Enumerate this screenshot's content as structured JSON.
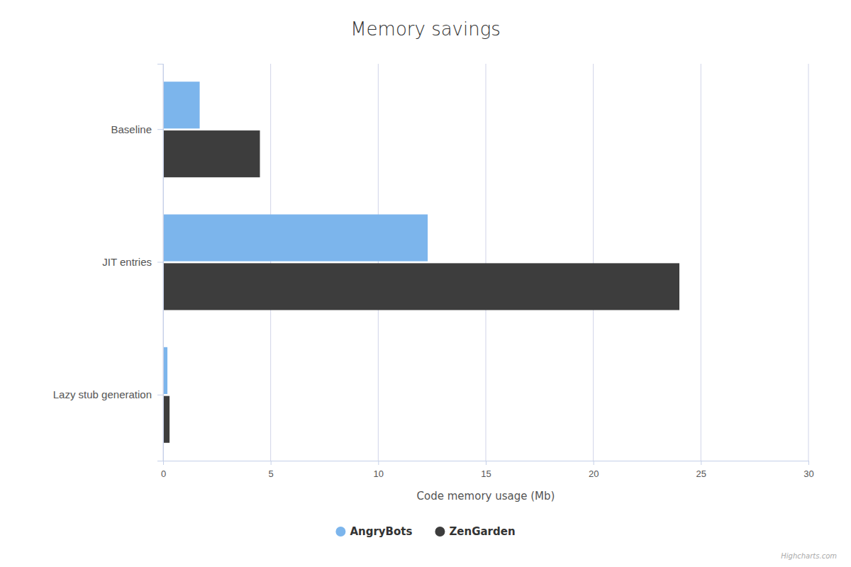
{
  "chart_data": {
    "type": "bar",
    "orientation": "horizontal",
    "title": "Memory savings",
    "categories": [
      "Baseline",
      "JIT entries",
      "Lazy stub generation"
    ],
    "series": [
      {
        "name": "AngryBots",
        "color": "#7cb5ec",
        "values": [
          1.7,
          12.3,
          0.2
        ]
      },
      {
        "name": "ZenGarden",
        "color": "#3d3d3d",
        "values": [
          4.5,
          24.0,
          0.3
        ]
      }
    ],
    "xlabel": "Code memory usage (Mb)",
    "xlim": [
      0,
      30
    ],
    "xticks": [
      0,
      5,
      10,
      15,
      20,
      25,
      30
    ],
    "grid": true,
    "legend": "bottom",
    "annotations": [
      "Highcharts.com"
    ]
  }
}
